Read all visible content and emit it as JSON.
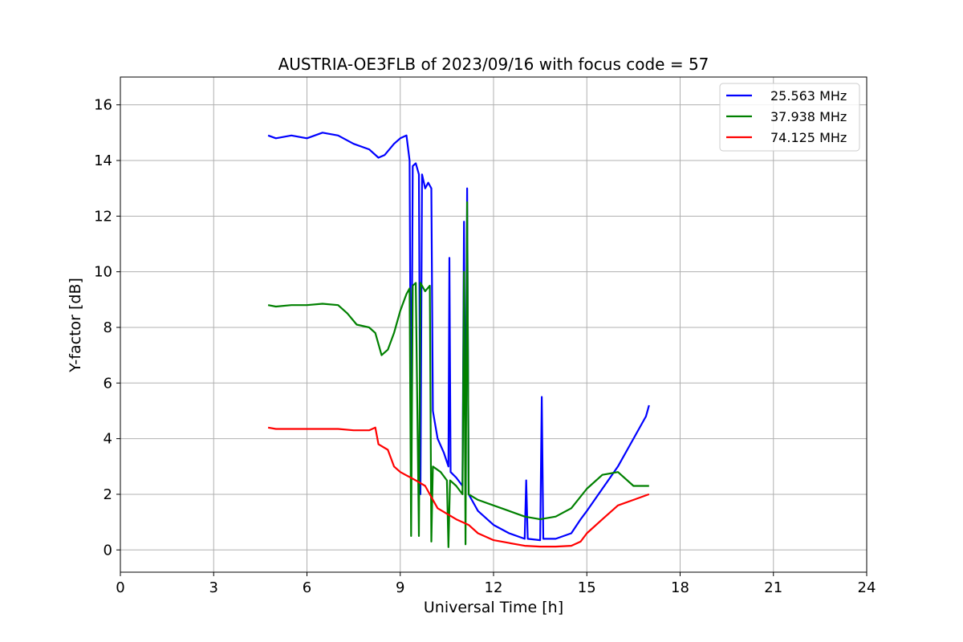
{
  "chart_data": {
    "type": "line",
    "title": "AUSTRIA-OE3FLB of 2023/09/16 with focus code = 57",
    "xlabel": "Universal Time [h]",
    "ylabel": "Y-factor [dB]",
    "xlim": [
      0,
      24
    ],
    "ylim": [
      -0.8,
      17
    ],
    "xticks": [
      0,
      3,
      6,
      9,
      12,
      15,
      18,
      21,
      24
    ],
    "yticks": [
      0,
      2,
      4,
      6,
      8,
      10,
      12,
      14,
      16
    ],
    "grid": true,
    "legend_position": "top-right",
    "series": [
      {
        "name": "25.563 MHz",
        "color": "#0000ff",
        "points": [
          [
            4.75,
            14.9
          ],
          [
            5.0,
            14.8
          ],
          [
            5.5,
            14.9
          ],
          [
            6.0,
            14.8
          ],
          [
            6.5,
            15.0
          ],
          [
            7.0,
            14.9
          ],
          [
            7.5,
            14.6
          ],
          [
            8.0,
            14.4
          ],
          [
            8.3,
            14.1
          ],
          [
            8.5,
            14.2
          ],
          [
            8.8,
            14.6
          ],
          [
            9.0,
            14.8
          ],
          [
            9.2,
            14.9
          ],
          [
            9.3,
            14.0
          ],
          [
            9.35,
            2.5
          ],
          [
            9.4,
            13.8
          ],
          [
            9.5,
            13.9
          ],
          [
            9.6,
            13.5
          ],
          [
            9.65,
            2.0
          ],
          [
            9.7,
            13.5
          ],
          [
            9.8,
            13.0
          ],
          [
            9.9,
            13.2
          ],
          [
            10.0,
            13.0
          ],
          [
            10.05,
            5.0
          ],
          [
            10.2,
            4.0
          ],
          [
            10.4,
            3.5
          ],
          [
            10.55,
            3.0
          ],
          [
            10.58,
            10.5
          ],
          [
            10.62,
            2.8
          ],
          [
            10.8,
            2.6
          ],
          [
            11.0,
            2.3
          ],
          [
            11.05,
            11.8
          ],
          [
            11.1,
            2.4
          ],
          [
            11.15,
            13.0
          ],
          [
            11.2,
            2.0
          ],
          [
            11.5,
            1.4
          ],
          [
            12.0,
            0.9
          ],
          [
            12.5,
            0.6
          ],
          [
            13.0,
            0.4
          ],
          [
            13.05,
            2.5
          ],
          [
            13.1,
            0.4
          ],
          [
            13.5,
            0.35
          ],
          [
            13.55,
            5.5
          ],
          [
            13.6,
            0.4
          ],
          [
            14.0,
            0.4
          ],
          [
            14.5,
            0.6
          ],
          [
            14.8,
            1.1
          ],
          [
            15.0,
            1.4
          ],
          [
            15.5,
            2.2
          ],
          [
            16.0,
            3.0
          ],
          [
            16.5,
            4.0
          ],
          [
            16.9,
            4.8
          ],
          [
            17.0,
            5.2
          ]
        ]
      },
      {
        "name": "37.938 MHz",
        "color": "#008000",
        "points": [
          [
            4.75,
            8.8
          ],
          [
            5.0,
            8.75
          ],
          [
            5.5,
            8.8
          ],
          [
            6.0,
            8.8
          ],
          [
            6.5,
            8.85
          ],
          [
            7.0,
            8.8
          ],
          [
            7.3,
            8.5
          ],
          [
            7.6,
            8.1
          ],
          [
            8.0,
            8.0
          ],
          [
            8.2,
            7.8
          ],
          [
            8.4,
            7.0
          ],
          [
            8.6,
            7.2
          ],
          [
            8.8,
            7.8
          ],
          [
            9.0,
            8.6
          ],
          [
            9.2,
            9.2
          ],
          [
            9.3,
            9.4
          ],
          [
            9.35,
            0.5
          ],
          [
            9.4,
            9.5
          ],
          [
            9.5,
            9.6
          ],
          [
            9.6,
            0.5
          ],
          [
            9.65,
            9.6
          ],
          [
            9.8,
            9.3
          ],
          [
            9.95,
            9.5
          ],
          [
            10.0,
            0.3
          ],
          [
            10.05,
            3.0
          ],
          [
            10.3,
            2.8
          ],
          [
            10.5,
            2.5
          ],
          [
            10.55,
            0.1
          ],
          [
            10.6,
            2.5
          ],
          [
            10.8,
            2.3
          ],
          [
            11.0,
            2.0
          ],
          [
            11.05,
            10.0
          ],
          [
            11.1,
            0.2
          ],
          [
            11.15,
            12.5
          ],
          [
            11.2,
            2.0
          ],
          [
            11.5,
            1.8
          ],
          [
            12.0,
            1.6
          ],
          [
            12.5,
            1.4
          ],
          [
            13.0,
            1.2
          ],
          [
            13.5,
            1.1
          ],
          [
            14.0,
            1.2
          ],
          [
            14.5,
            1.5
          ],
          [
            15.0,
            2.2
          ],
          [
            15.5,
            2.7
          ],
          [
            16.0,
            2.8
          ],
          [
            16.5,
            2.3
          ],
          [
            17.0,
            2.3
          ]
        ]
      },
      {
        "name": "74.125 MHz",
        "color": "#ff0000",
        "points": [
          [
            4.75,
            4.4
          ],
          [
            5.0,
            4.35
          ],
          [
            5.5,
            4.35
          ],
          [
            6.0,
            4.35
          ],
          [
            6.5,
            4.35
          ],
          [
            7.0,
            4.35
          ],
          [
            7.5,
            4.3
          ],
          [
            8.0,
            4.3
          ],
          [
            8.2,
            4.4
          ],
          [
            8.3,
            3.8
          ],
          [
            8.6,
            3.6
          ],
          [
            8.8,
            3.0
          ],
          [
            9.0,
            2.8
          ],
          [
            9.5,
            2.5
          ],
          [
            9.8,
            2.3
          ],
          [
            10.0,
            1.9
          ],
          [
            10.2,
            1.5
          ],
          [
            10.5,
            1.3
          ],
          [
            10.8,
            1.1
          ],
          [
            11.2,
            0.9
          ],
          [
            11.5,
            0.6
          ],
          [
            12.0,
            0.35
          ],
          [
            12.5,
            0.25
          ],
          [
            13.0,
            0.15
          ],
          [
            13.5,
            0.12
          ],
          [
            14.0,
            0.12
          ],
          [
            14.5,
            0.15
          ],
          [
            14.8,
            0.3
          ],
          [
            15.0,
            0.6
          ],
          [
            15.5,
            1.1
          ],
          [
            16.0,
            1.6
          ],
          [
            16.5,
            1.8
          ],
          [
            17.0,
            2.0
          ]
        ]
      }
    ]
  }
}
